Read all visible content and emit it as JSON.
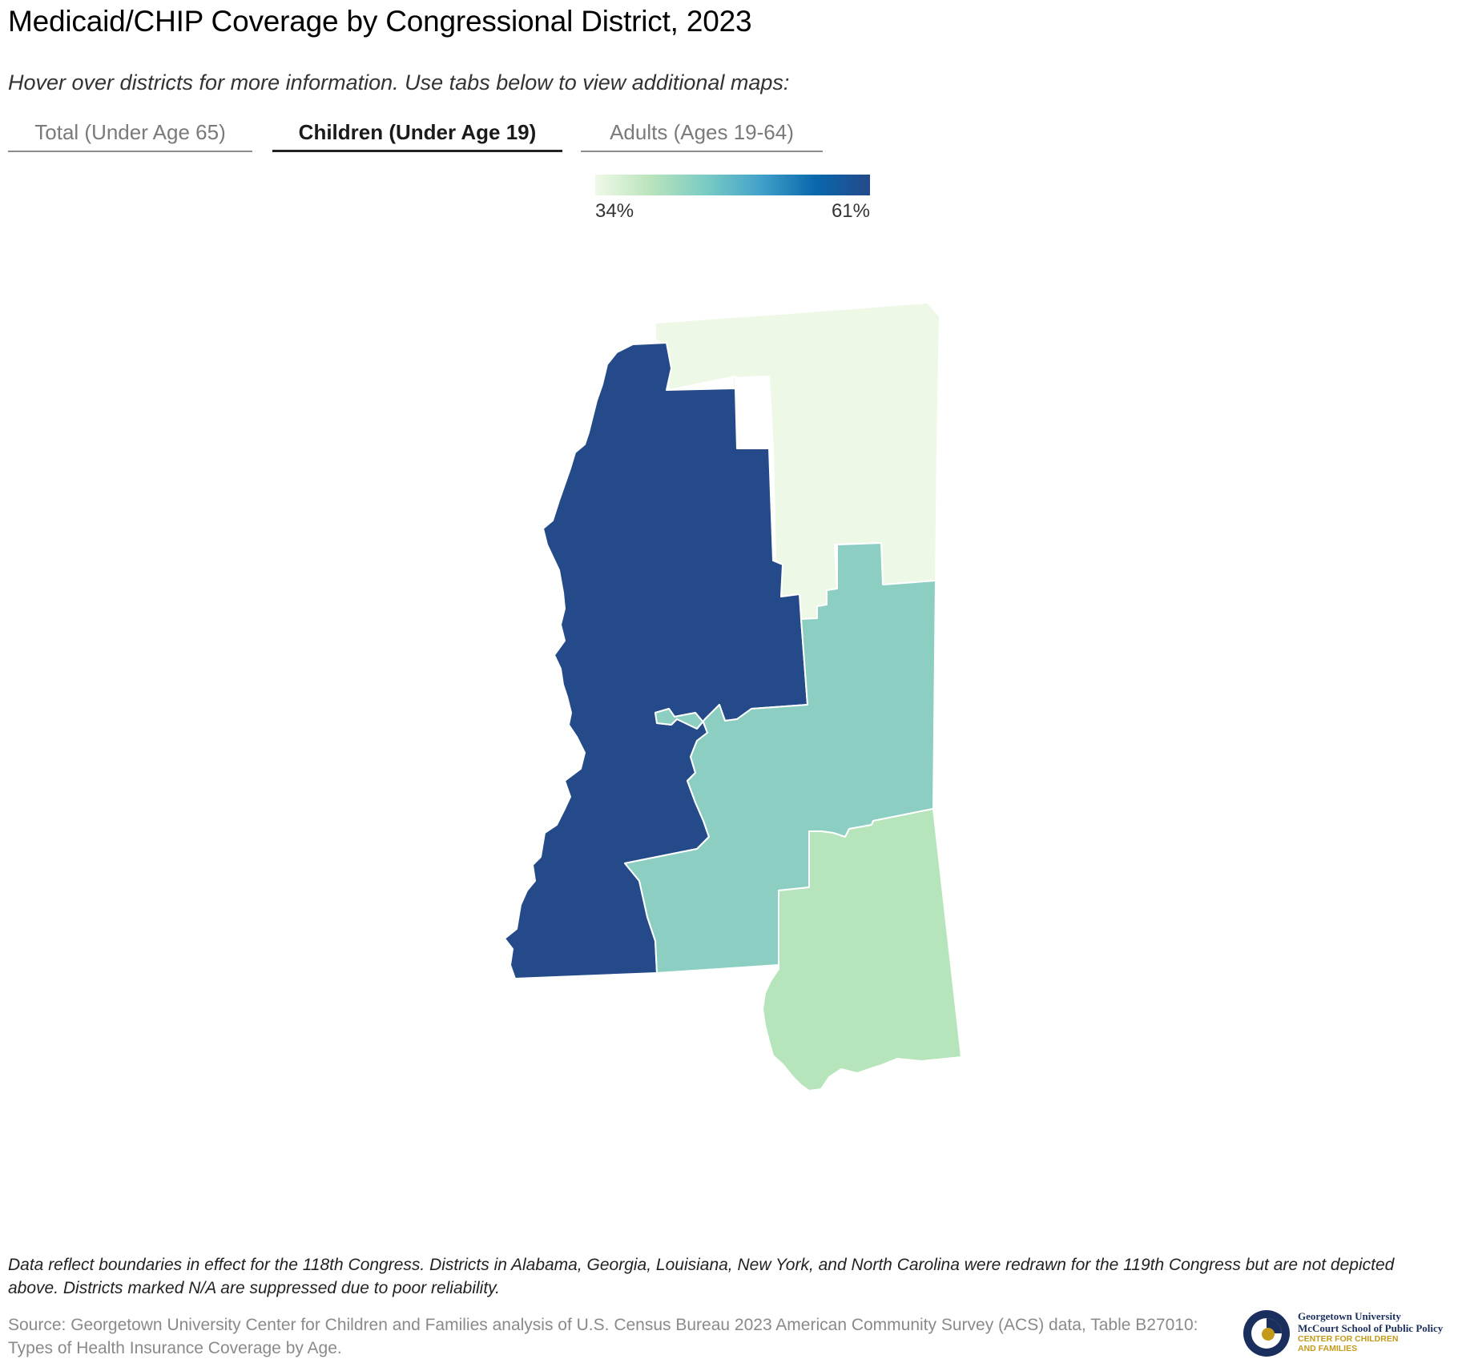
{
  "title": "Medicaid/CHIP Coverage by Congressional District, 2023",
  "subtitle": "Hover over districts for more information. Use tabs below to view additional maps:",
  "tabs": [
    {
      "label": "Total (Under Age 65)",
      "active": false
    },
    {
      "label": "Children (Under Age 19)",
      "active": true
    },
    {
      "label": "Adults (Ages 19-64)",
      "active": false
    }
  ],
  "legend": {
    "min_label": "34%",
    "max_label": "61%",
    "min_value": 34,
    "max_value": 61,
    "colors": [
      "#f0f9e8",
      "#bae4bc",
      "#7bccc4",
      "#43a2ca",
      "#0868ac",
      "#24498a"
    ]
  },
  "map": {
    "state": "Mississippi",
    "districts": [
      {
        "id": "MS-1",
        "color": "#eef8e6"
      },
      {
        "id": "MS-2",
        "color": "#254a8a"
      },
      {
        "id": "MS-3",
        "color": "#8ccfc2"
      },
      {
        "id": "MS-4",
        "color": "#b6e4bb"
      }
    ]
  },
  "note": "Data reflect boundaries in effect for the 118th Congress. Districts in Alabama, Georgia, Louisiana, New York, and North Carolina were redrawn for the 119th Congress but are not depicted above. Districts marked N/A are suppressed due to poor reliability.",
  "source": "Source: Georgetown University Center for Children and Families analysis of U.S. Census Bureau 2023 American Community Survey (ACS) data, Table B27010: Types of Health Insurance Coverage by Age.",
  "logo": {
    "line1": "Georgetown University",
    "line2": "McCourt School of Public Policy",
    "line3": "CENTER FOR CHILDREN",
    "line4": "AND FAMILIES",
    "navy": "#1b2f5e",
    "gold": "#c49a1a"
  }
}
